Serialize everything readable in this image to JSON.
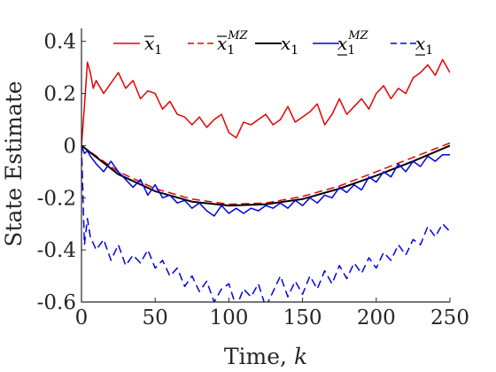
{
  "chart_data": {
    "type": "line",
    "title": "",
    "xlabel": "Time,",
    "xlabel_var": "k",
    "ylabel": "State Estimate",
    "xlim": [
      0,
      250
    ],
    "ylim": [
      -0.6,
      0.45
    ],
    "xticks": [
      0,
      50,
      100,
      150,
      200,
      250
    ],
    "xtick_labels": [
      "0",
      "50",
      "100",
      "150",
      "200",
      "250"
    ],
    "yticks": [
      -0.6,
      -0.4,
      -0.2,
      0,
      0.2,
      0.4
    ],
    "ytick_labels": [
      "-0.6",
      "-0.4",
      "-0.2",
      "0",
      "0.2",
      "0.4"
    ],
    "grid": false,
    "legend_position": "top",
    "series": [
      {
        "name": "x̄1",
        "legend_base": "x",
        "legend_sub": "1",
        "legend_sup": "",
        "legend_mark": "bar",
        "color": "#e60000",
        "dash": "solid",
        "x": [
          0,
          2,
          4,
          6,
          8,
          10,
          15,
          20,
          25,
          30,
          35,
          40,
          45,
          50,
          55,
          60,
          65,
          70,
          75,
          80,
          85,
          90,
          95,
          100,
          105,
          110,
          115,
          120,
          125,
          130,
          135,
          140,
          145,
          150,
          155,
          160,
          165,
          170,
          175,
          180,
          185,
          190,
          195,
          200,
          205,
          210,
          215,
          220,
          225,
          230,
          235,
          240,
          245,
          248,
          250
        ],
        "y": [
          0,
          0.15,
          0.32,
          0.28,
          0.22,
          0.25,
          0.2,
          0.24,
          0.28,
          0.22,
          0.25,
          0.18,
          0.21,
          0.2,
          0.14,
          0.17,
          0.12,
          0.11,
          0.08,
          0.11,
          0.07,
          0.1,
          0.12,
          0.05,
          0.03,
          0.09,
          0.08,
          0.1,
          0.12,
          0.08,
          0.1,
          0.15,
          0.09,
          0.11,
          0.13,
          0.16,
          0.08,
          0.12,
          0.18,
          0.12,
          0.15,
          0.18,
          0.14,
          0.2,
          0.23,
          0.18,
          0.22,
          0.2,
          0.26,
          0.28,
          0.31,
          0.27,
          0.33,
          0.3,
          0.28
        ]
      },
      {
        "name": "x̄1 MZ",
        "legend_base": "x",
        "legend_sub": "1",
        "legend_sup": "MZ",
        "legend_mark": "bar",
        "color": "#e60000",
        "dash": "dashed",
        "x": [
          0,
          25,
          50,
          75,
          100,
          125,
          150,
          175,
          200,
          225,
          250
        ],
        "y": [
          0,
          -0.1,
          -0.165,
          -0.205,
          -0.225,
          -0.22,
          -0.195,
          -0.155,
          -0.1,
          -0.045,
          0.01
        ]
      },
      {
        "name": "x1",
        "legend_base": "x",
        "legend_sub": "1",
        "legend_sup": "",
        "legend_mark": "none",
        "color": "#000000",
        "dash": "solid",
        "x": [
          0,
          25,
          50,
          75,
          100,
          125,
          150,
          175,
          200,
          225,
          250
        ],
        "y": [
          0,
          -0.11,
          -0.175,
          -0.215,
          -0.23,
          -0.225,
          -0.205,
          -0.165,
          -0.115,
          -0.06,
          0
        ]
      },
      {
        "name": "x1 MZ",
        "legend_base": "x",
        "legend_sub": "1",
        "legend_sup": "MZ",
        "legend_mark": "underline",
        "color": "#0000e6",
        "dash": "solid",
        "x": [
          0,
          2,
          4,
          6,
          10,
          15,
          20,
          25,
          30,
          35,
          40,
          45,
          50,
          55,
          60,
          65,
          70,
          75,
          80,
          85,
          90,
          95,
          100,
          105,
          110,
          115,
          120,
          125,
          130,
          135,
          140,
          145,
          150,
          155,
          160,
          165,
          170,
          175,
          180,
          185,
          190,
          195,
          200,
          205,
          210,
          215,
          220,
          225,
          230,
          235,
          240,
          245,
          250
        ],
        "y": [
          0,
          -0.03,
          -0.02,
          -0.04,
          -0.07,
          -0.1,
          -0.06,
          -0.1,
          -0.13,
          -0.16,
          -0.13,
          -0.19,
          -0.15,
          -0.2,
          -0.19,
          -0.22,
          -0.21,
          -0.24,
          -0.22,
          -0.25,
          -0.27,
          -0.23,
          -0.26,
          -0.24,
          -0.26,
          -0.24,
          -0.25,
          -0.23,
          -0.24,
          -0.22,
          -0.24,
          -0.21,
          -0.23,
          -0.2,
          -0.22,
          -0.19,
          -0.2,
          -0.16,
          -0.18,
          -0.15,
          -0.17,
          -0.12,
          -0.14,
          -0.1,
          -0.12,
          -0.07,
          -0.1,
          -0.06,
          -0.08,
          -0.04,
          -0.06,
          -0.035,
          -0.035
        ]
      },
      {
        "name": "x1 lower",
        "legend_base": "x",
        "legend_sub": "1",
        "legend_sup": "",
        "legend_mark": "underline",
        "color": "#0000e6",
        "dash": "dashed",
        "x": [
          0,
          2,
          4,
          6,
          10,
          15,
          20,
          25,
          30,
          35,
          40,
          45,
          50,
          55,
          60,
          65,
          70,
          75,
          80,
          85,
          90,
          95,
          100,
          105,
          110,
          115,
          120,
          125,
          130,
          135,
          140,
          145,
          150,
          155,
          160,
          165,
          170,
          175,
          180,
          185,
          190,
          195,
          200,
          205,
          210,
          215,
          220,
          225,
          230,
          235,
          240,
          245,
          250
        ],
        "y": [
          0,
          -0.38,
          -0.28,
          -0.35,
          -0.4,
          -0.36,
          -0.44,
          -0.38,
          -0.46,
          -0.42,
          -0.45,
          -0.4,
          -0.47,
          -0.44,
          -0.5,
          -0.47,
          -0.54,
          -0.5,
          -0.56,
          -0.52,
          -0.6,
          -0.55,
          -0.53,
          -0.62,
          -0.55,
          -0.58,
          -0.53,
          -0.62,
          -0.56,
          -0.5,
          -0.58,
          -0.52,
          -0.57,
          -0.5,
          -0.55,
          -0.48,
          -0.53,
          -0.46,
          -0.51,
          -0.45,
          -0.49,
          -0.43,
          -0.47,
          -0.41,
          -0.44,
          -0.38,
          -0.42,
          -0.36,
          -0.38,
          -0.31,
          -0.35,
          -0.3,
          -0.33
        ]
      }
    ]
  }
}
